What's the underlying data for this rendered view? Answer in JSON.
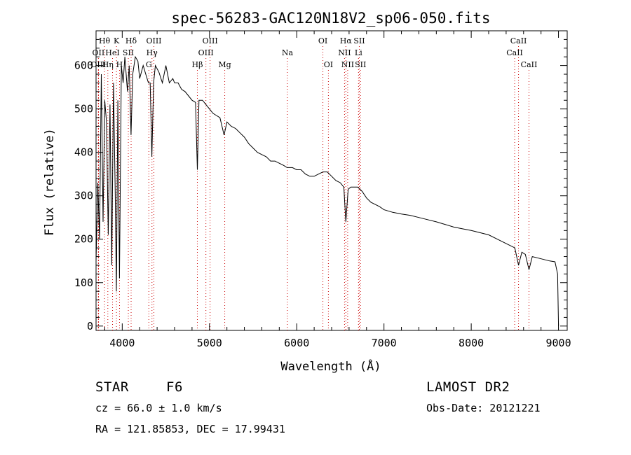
{
  "chart_data": {
    "type": "line",
    "title": "spec-56283-GAC120N18V2_sp06-050.fits",
    "xlabel": "Wavelength (Å)",
    "ylabel": "Flux (relative)",
    "xlim": [
      3700,
      9100
    ],
    "ylim": [
      -10,
      680
    ],
    "xticks": [
      4000,
      5000,
      6000,
      7000,
      8000,
      9000
    ],
    "yticks": [
      0,
      100,
      200,
      300,
      400,
      500,
      600
    ],
    "grid": false,
    "series": [
      {
        "name": "spectrum",
        "points": [
          [
            3700,
            150
          ],
          [
            3720,
            330
          ],
          [
            3740,
            200
          ],
          [
            3760,
            580
          ],
          [
            3780,
            240
          ],
          [
            3800,
            520
          ],
          [
            3820,
            470
          ],
          [
            3840,
            210
          ],
          [
            3860,
            510
          ],
          [
            3880,
            140
          ],
          [
            3900,
            560
          ],
          [
            3920,
            300
          ],
          [
            3933,
            80
          ],
          [
            3950,
            520
          ],
          [
            3968,
            110
          ],
          [
            3990,
            600
          ],
          [
            4010,
            560
          ],
          [
            4030,
            620
          ],
          [
            4060,
            540
          ],
          [
            4080,
            600
          ],
          [
            4101,
            440
          ],
          [
            4120,
            580
          ],
          [
            4150,
            620
          ],
          [
            4180,
            610
          ],
          [
            4200,
            570
          ],
          [
            4240,
            600
          ],
          [
            4270,
            580
          ],
          [
            4300,
            560
          ],
          [
            4320,
            560
          ],
          [
            4340,
            390
          ],
          [
            4360,
            560
          ],
          [
            4380,
            600
          ],
          [
            4420,
            585
          ],
          [
            4460,
            560
          ],
          [
            4500,
            600
          ],
          [
            4540,
            560
          ],
          [
            4580,
            570
          ],
          [
            4600,
            560
          ],
          [
            4640,
            560
          ],
          [
            4680,
            545
          ],
          [
            4720,
            540
          ],
          [
            4760,
            530
          ],
          [
            4800,
            520
          ],
          [
            4840,
            515
          ],
          [
            4861,
            360
          ],
          [
            4880,
            520
          ],
          [
            4920,
            520
          ],
          [
            4960,
            510
          ],
          [
            5000,
            500
          ],
          [
            5040,
            490
          ],
          [
            5080,
            485
          ],
          [
            5120,
            480
          ],
          [
            5167,
            440
          ],
          [
            5200,
            470
          ],
          [
            5250,
            460
          ],
          [
            5300,
            455
          ],
          [
            5350,
            445
          ],
          [
            5400,
            435
          ],
          [
            5450,
            420
          ],
          [
            5500,
            410
          ],
          [
            5550,
            400
          ],
          [
            5600,
            395
          ],
          [
            5650,
            390
          ],
          [
            5700,
            380
          ],
          [
            5750,
            380
          ],
          [
            5800,
            375
          ],
          [
            5850,
            370
          ],
          [
            5890,
            365
          ],
          [
            5950,
            365
          ],
          [
            6000,
            360
          ],
          [
            6050,
            360
          ],
          [
            6100,
            350
          ],
          [
            6150,
            345
          ],
          [
            6200,
            345
          ],
          [
            6250,
            350
          ],
          [
            6300,
            355
          ],
          [
            6350,
            355
          ],
          [
            6400,
            345
          ],
          [
            6450,
            335
          ],
          [
            6500,
            330
          ],
          [
            6540,
            320
          ],
          [
            6563,
            240
          ],
          [
            6590,
            315
          ],
          [
            6620,
            320
          ],
          [
            6650,
            320
          ],
          [
            6700,
            320
          ],
          [
            6750,
            310
          ],
          [
            6800,
            295
          ],
          [
            6850,
            285
          ],
          [
            6900,
            280
          ],
          [
            6950,
            275
          ],
          [
            7000,
            268
          ],
          [
            7100,
            262
          ],
          [
            7200,
            258
          ],
          [
            7300,
            255
          ],
          [
            7400,
            250
          ],
          [
            7500,
            245
          ],
          [
            7600,
            240
          ],
          [
            7700,
            234
          ],
          [
            7800,
            228
          ],
          [
            7900,
            224
          ],
          [
            8000,
            220
          ],
          [
            8100,
            215
          ],
          [
            8200,
            210
          ],
          [
            8300,
            200
          ],
          [
            8400,
            190
          ],
          [
            8500,
            180
          ],
          [
            8542,
            140
          ],
          [
            8580,
            170
          ],
          [
            8620,
            165
          ],
          [
            8662,
            130
          ],
          [
            8700,
            160
          ],
          [
            8800,
            155
          ],
          [
            8900,
            150
          ],
          [
            8960,
            148
          ],
          [
            8990,
            120
          ],
          [
            9000,
            0
          ]
        ]
      }
    ],
    "lines": [
      {
        "label": "Hθ",
        "wavelength": 3797,
        "row": 1
      },
      {
        "label": "OII",
        "wavelength": 3727,
        "row": 2
      },
      {
        "label": "OIII",
        "wavelength": 3727,
        "row": 3
      },
      {
        "label": "K",
        "wavelength": 3934,
        "row": 1
      },
      {
        "label": "HeI",
        "wavelength": 3889,
        "row": 2
      },
      {
        "label": "Hη",
        "wavelength": 3835,
        "row": 3
      },
      {
        "label": "H",
        "wavelength": 3969,
        "row": 3
      },
      {
        "label": "Hδ",
        "wavelength": 4102,
        "row": 1
      },
      {
        "label": "SII",
        "wavelength": 4070,
        "row": 2
      },
      {
        "label": "OIII",
        "wavelength": 4363,
        "row": 1
      },
      {
        "label": "Hγ",
        "wavelength": 4341,
        "row": 2
      },
      {
        "label": "G",
        "wavelength": 4305,
        "row": 3
      },
      {
        "label": "Hβ",
        "wavelength": 4861,
        "row": 3
      },
      {
        "label": "OIII",
        "wavelength": 5007,
        "row": 1
      },
      {
        "label": "OIII",
        "wavelength": 4959,
        "row": 2
      },
      {
        "label": "Mg",
        "wavelength": 5175,
        "row": 3
      },
      {
        "label": "Na",
        "wavelength": 5893,
        "row": 2
      },
      {
        "label": "OI",
        "wavelength": 6300,
        "row": 1
      },
      {
        "label": "OI",
        "wavelength": 6363,
        "row": 3
      },
      {
        "label": "Hα",
        "wavelength": 6563,
        "row": 1
      },
      {
        "label": "NII",
        "wavelength": 6548,
        "row": 2
      },
      {
        "label": "NII",
        "wavelength": 6584,
        "row": 3
      },
      {
        "label": "SII",
        "wavelength": 6717,
        "row": 1
      },
      {
        "label": "Li",
        "wavelength": 6708,
        "row": 2
      },
      {
        "label": "SII",
        "wavelength": 6731,
        "row": 3
      },
      {
        "label": "CaII",
        "wavelength": 8542,
        "row": 1
      },
      {
        "label": "CaII",
        "wavelength": 8498,
        "row": 2
      },
      {
        "label": "CaII",
        "wavelength": 8662,
        "row": 3
      }
    ],
    "line_color": "#cc0000"
  },
  "info": {
    "object_class": "STAR",
    "subclass": "F6",
    "survey": "LAMOST DR2",
    "cz": "cz = 66.0 ± 1.0 km/s",
    "obs_date": "Obs-Date: 20121221",
    "coords": "RA = 121.85853, DEC =  17.99431"
  }
}
